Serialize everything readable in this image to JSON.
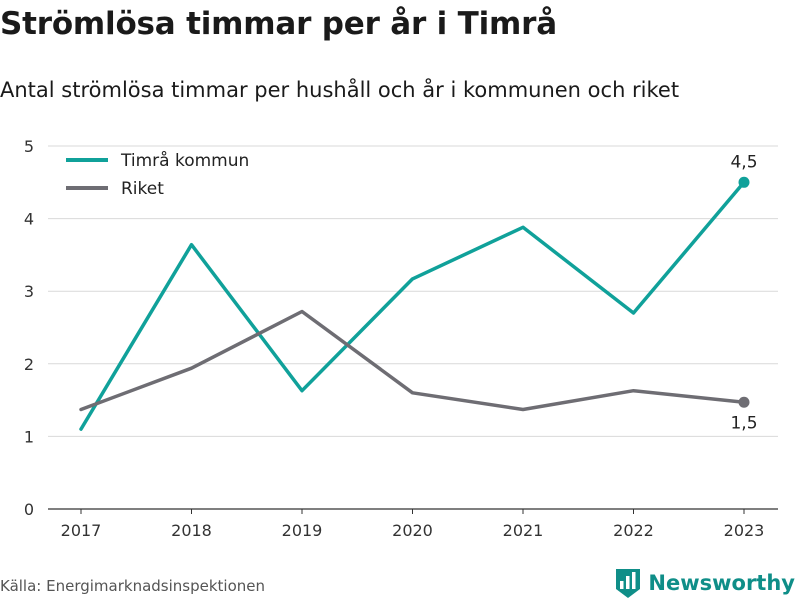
{
  "chart_data": {
    "type": "line",
    "title": "Strömlösa timmar per år i Timrå",
    "subtitle": "Antal strömlösa timmar per hushåll och år i kommunen och riket",
    "x": [
      "2017",
      "2018",
      "2019",
      "2020",
      "2021",
      "2022",
      "2023"
    ],
    "ylim": [
      0,
      5
    ],
    "yticks": [
      0,
      1,
      2,
      3,
      4,
      5
    ],
    "grid": true,
    "legend": "top-left",
    "series": [
      {
        "name": "Timrå kommun",
        "color": "#10a19a",
        "values": [
          1.1,
          3.64,
          1.63,
          3.17,
          3.88,
          2.7,
          4.5
        ],
        "end_label": "4,5",
        "end_label_position": "above"
      },
      {
        "name": "Riket",
        "color": "#6e6d73",
        "values": [
          1.37,
          1.94,
          2.72,
          1.6,
          1.37,
          1.63,
          1.47
        ],
        "end_label": "1,5",
        "end_label_position": "below"
      }
    ]
  },
  "footer": {
    "source": "Källa: Energimarknadsinspektionen",
    "brand": "Newsworthy",
    "brand_icon": "bar-chart-shield-icon",
    "brand_color": "#0f8e88"
  }
}
